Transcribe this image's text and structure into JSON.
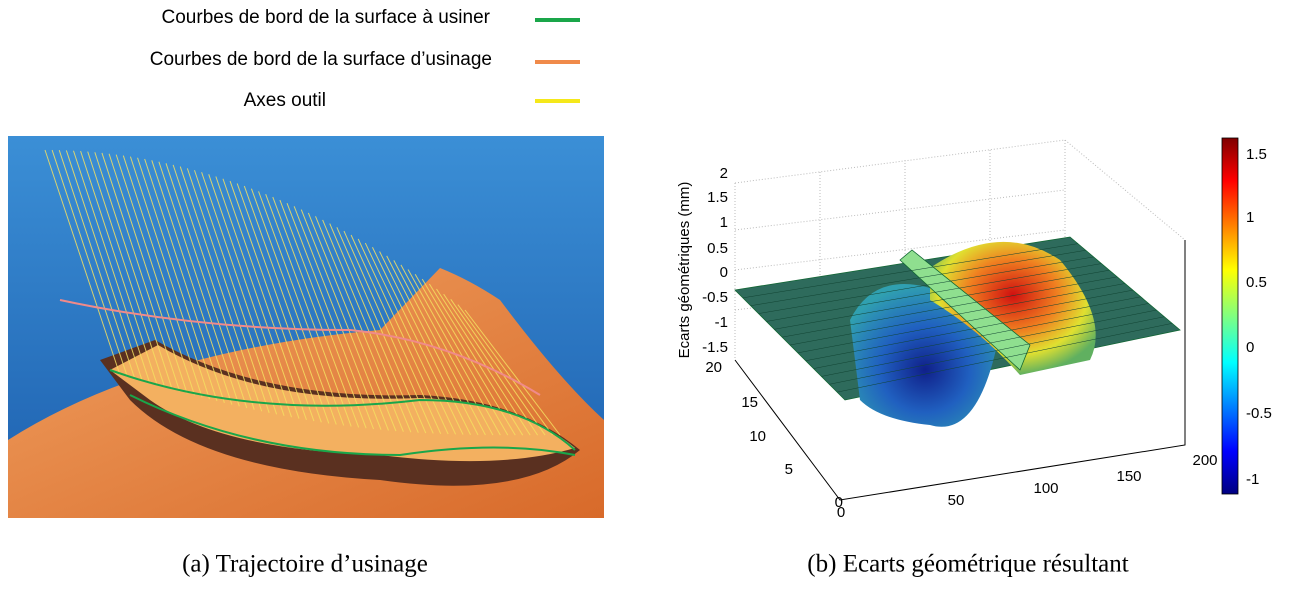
{
  "legend": {
    "items": [
      {
        "label": "Courbes de bord de la surface à usiner"
      },
      {
        "label": "Courbes de bord de la surface d’usinage"
      },
      {
        "label": "Axes outil"
      }
    ]
  },
  "subfigures": [
    {
      "caption": "(a) Trajectoire d’usinage"
    },
    {
      "caption": "(b) Ecarts géométrique résultant",
      "z_axis_label": "Ecarts géométriques (mm)",
      "z_ticks": [
        "2",
        "1.5",
        "1",
        "0.5",
        "0",
        "-0.5",
        "-1",
        "-1.5"
      ],
      "y_ticks": [
        "20",
        "15",
        "10",
        "5",
        "0"
      ],
      "x_ticks": [
        "0",
        "50",
        "100",
        "150",
        "200"
      ],
      "colorbar_ticks": [
        "1.5",
        "1",
        "0.5",
        "0",
        "-0.5",
        "-1"
      ]
    }
  ]
}
